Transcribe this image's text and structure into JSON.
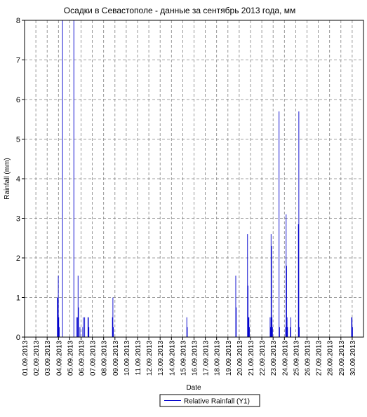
{
  "chart_data": {
    "type": "bar",
    "title": "Осадки в Севастополе - данные за сентябрь 2013 года, мм",
    "xlabel": "Date",
    "ylabel": "Rainfall (mm)",
    "ylim": [
      0,
      8
    ],
    "yticks": [
      "0",
      "1",
      "2",
      "3",
      "4",
      "5",
      "6",
      "7",
      "8"
    ],
    "xlim": [
      "2013-09-01",
      "2013-10-01"
    ],
    "xticks": [
      "01.09.2013",
      "02.09.2013",
      "03.09.2013",
      "04.09.2013",
      "05.09.2013",
      "06.09.2013",
      "07.09.2013",
      "08.09.2013",
      "09.09.2013",
      "10.09.2013",
      "11.09.2013",
      "12.09.2013",
      "13.09.2013",
      "14.09.2013",
      "15.09.2013",
      "16.09.2013",
      "17.09.2013",
      "18.09.2013",
      "19.09.2013",
      "20.09.2013",
      "21.09.2013",
      "22.09.2013",
      "23.09.2013",
      "24.09.2013",
      "25.09.2013",
      "26.09.2013",
      "27.09.2013",
      "28.09.2013",
      "29.09.2013",
      "30.09.2013"
    ],
    "grid": true,
    "legend_position": "bottom-center",
    "series": [
      {
        "name": "Relative Rainfall (Y1)",
        "color": "#0000cc",
        "points": [
          {
            "x": "2013-09-03 21:00",
            "y": 1.0
          },
          {
            "x": "2013-09-03 22:00",
            "y": 1.0
          },
          {
            "x": "2013-09-03 23:00",
            "y": 1.55
          },
          {
            "x": "2013-09-04 00:00",
            "y": 0.5
          },
          {
            "x": "2013-09-04 01:00",
            "y": 0.25
          },
          {
            "x": "2013-09-04 08:00",
            "y": 8.0
          },
          {
            "x": "2013-09-05 08:00",
            "y": 8.0
          },
          {
            "x": "2013-09-05 14:00",
            "y": 0.5
          },
          {
            "x": "2013-09-05 16:00",
            "y": 0.5
          },
          {
            "x": "2013-09-05 17:00",
            "y": 1.55
          },
          {
            "x": "2013-09-05 18:00",
            "y": 0.75
          },
          {
            "x": "2013-09-05 21:00",
            "y": 0.25
          },
          {
            "x": "2013-09-06 03:00",
            "y": 0.25
          },
          {
            "x": "2013-09-06 04:00",
            "y": 0.5
          },
          {
            "x": "2013-09-06 07:00",
            "y": 0.5
          },
          {
            "x": "2013-09-06 14:00",
            "y": 0.5
          },
          {
            "x": "2013-09-06 15:00",
            "y": 0.5
          },
          {
            "x": "2013-09-06 16:00",
            "y": 0.25
          },
          {
            "x": "2013-09-08 18:00",
            "y": 0.5
          },
          {
            "x": "2013-09-08 19:00",
            "y": 1.0
          },
          {
            "x": "2013-09-08 20:00",
            "y": 0.25
          },
          {
            "x": "2013-09-15 08:00",
            "y": 0.5
          },
          {
            "x": "2013-09-15 09:00",
            "y": 0.25
          },
          {
            "x": "2013-09-19 16:00",
            "y": 1.55
          },
          {
            "x": "2013-09-19 17:00",
            "y": 0.75
          },
          {
            "x": "2013-09-20 17:00",
            "y": 2.6
          },
          {
            "x": "2013-09-20 18:00",
            "y": 1.3
          },
          {
            "x": "2013-09-20 19:00",
            "y": 0.5
          },
          {
            "x": "2013-09-20 20:00",
            "y": 0.5
          },
          {
            "x": "2013-09-20 21:00",
            "y": 0.25
          },
          {
            "x": "2013-09-22 17:00",
            "y": 0.5
          },
          {
            "x": "2013-09-22 18:00",
            "y": 0.25
          },
          {
            "x": "2013-09-22 19:00",
            "y": 2.6
          },
          {
            "x": "2013-09-22 20:00",
            "y": 2.3
          },
          {
            "x": "2013-09-22 21:00",
            "y": 0.5
          },
          {
            "x": "2013-09-22 22:00",
            "y": 0.25
          },
          {
            "x": "2013-09-23 12:00",
            "y": 5.7
          },
          {
            "x": "2013-09-23 13:00",
            "y": 0.25
          },
          {
            "x": "2013-09-24 02:00",
            "y": 0.25
          },
          {
            "x": "2013-09-24 03:00",
            "y": 3.1
          },
          {
            "x": "2013-09-24 04:00",
            "y": 1.8
          },
          {
            "x": "2013-09-24 05:00",
            "y": 0.5
          },
          {
            "x": "2013-09-24 06:00",
            "y": 0.25
          },
          {
            "x": "2013-09-24 12:00",
            "y": 0.25
          },
          {
            "x": "2013-09-24 13:00",
            "y": 0.5
          },
          {
            "x": "2013-09-25 05:00",
            "y": 2.85
          },
          {
            "x": "2013-09-25 06:00",
            "y": 5.7
          },
          {
            "x": "2013-09-25 07:00",
            "y": 0.25
          },
          {
            "x": "2013-09-29 22:00",
            "y": 0.5
          },
          {
            "x": "2013-09-29 23:00",
            "y": 0.5
          },
          {
            "x": "2013-09-30 00:00",
            "y": 0.25
          }
        ]
      }
    ]
  }
}
